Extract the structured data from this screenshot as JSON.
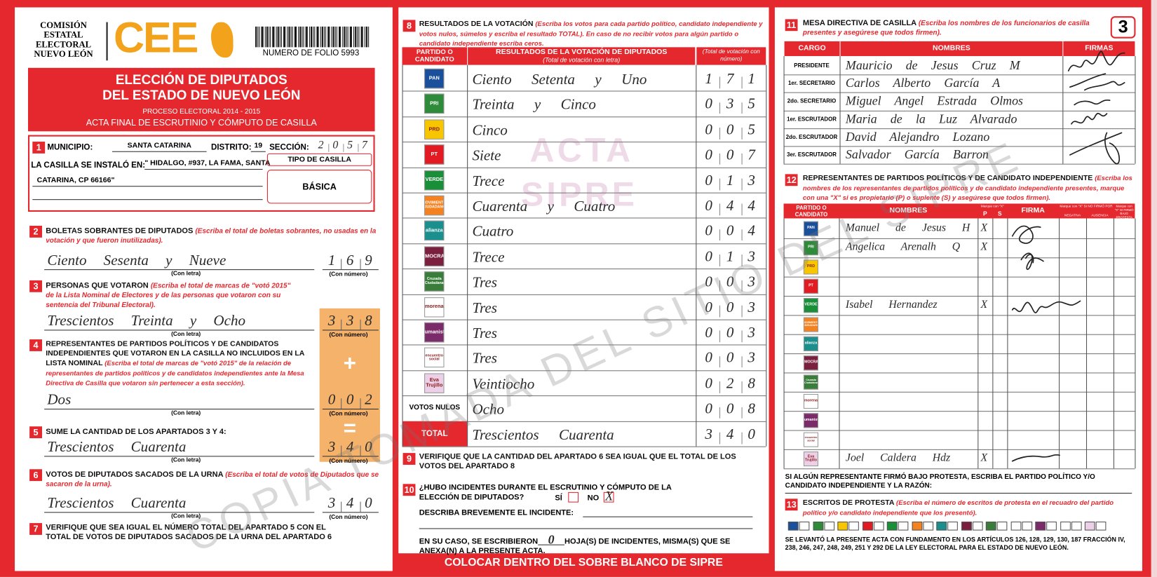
{
  "header": {
    "commission": [
      "COMISIÓN",
      "ESTATAL",
      "ELECTORAL",
      "NUEVO LEÓN"
    ],
    "logo": "CEE",
    "folio": "NUMERO DE FOLIO 5993",
    "title": [
      "ELECCIÓN DE DIPUTADOS",
      "DEL ESTADO DE NUEVO LEÓN"
    ],
    "process": "PROCESO ELECTORAL 2014 - 2015",
    "subtitle": "ACTA FINAL DE ESCRUTINIO Y CÓMPUTO DE CASILLA",
    "sheet": "3"
  },
  "location": {
    "number": "1",
    "municipio_label": "MUNICIPIO:",
    "municipio": "SANTA CATARINA",
    "distrito_label": "DISTRITO:",
    "distrito": "19",
    "seccion_label": "SECCIÓN:",
    "seccion": "2057",
    "installed_label": "LA CASILLA SE INSTALÓ EN:",
    "address": [
      "\" HIDALGO, #937, LA FAMA, SANTA",
      "CATARINA, CP 66166\""
    ],
    "type_label": "TIPO DE CASILLA",
    "type": "BÁSICA"
  },
  "captions": {
    "letter": "(Con letra)",
    "number": "(Con número)"
  },
  "operators": [
    "+",
    "="
  ],
  "tally": [
    {
      "number": "2",
      "title": "BOLETAS SOBRANTES DE DIPUTADOS",
      "instruction": "(Escriba el total de boletas sobrantes, no usadas en la votación y que fueron inutilizadas).",
      "words": "Ciento Sesenta y Nueve",
      "digits": "169"
    },
    {
      "number": "3",
      "title": "PERSONAS QUE VOTARON",
      "instruction": "(Escriba el total de marcas de \"votó 2015\" de la Lista Nominal de Electores y de las personas que votaron con su sentencia del Tribunal Electoral).",
      "words": "Trescientos Treinta y Ocho",
      "digits": "338"
    },
    {
      "number": "4",
      "title": "REPRESENTANTES DE PARTIDOS POLÍTICOS Y DE CANDIDATOS INDEPENDIENTES QUE VOTARON EN LA CASILLA NO INCLUIDOS EN LA LISTA NOMINAL",
      "instruction": "(Escriba el total de marcas de \"votó 2015\" de la relación de representantes de partidos políticos y de candidatos independientes ante la Mesa Directiva de Casilla que votaron sin pertenecer a esta sección).",
      "words": "Dos",
      "digits": "002"
    },
    {
      "number": "5",
      "title": "SUME LA CANTIDAD DE LOS APARTADOS 3 Y 4:",
      "words": "Trescientos Cuarenta",
      "digits": "340"
    },
    {
      "number": "6",
      "title": "VOTOS DE DIPUTADOS SACADOS DE LA URNA",
      "instruction": "(Escriba el total de votos de Diputados que se sacaron de la urna).",
      "words": "Trescientos Cuarenta",
      "digits": "340"
    }
  ],
  "check7": {
    "number": "7",
    "title": "VERIFIQUE QUE SEA IGUAL EL NÚMERO TOTAL DEL APARTADO 5 CON EL TOTAL DE VOTOS DE DIPUTADOS SACADOS DE LA URNA DEL APARTADO 6"
  },
  "results": {
    "number": "8",
    "title": "RESULTADOS DE LA VOTACIÓN",
    "instruction": "(Escriba los votos para cada partido político, candidato independiente y votos nulos, súmelos y escriba el resultado TOTAL). En caso de no recibir votos para algún partido o candidato independiente escriba ceros.",
    "headers": {
      "party": "PARTIDO O CANDIDATO",
      "words": "RESULTADOS DE LA VOTACIÓN DE DIPUTADOS",
      "words_note": "(Total de votación con letra)",
      "digits": "(Total de votación con número)"
    },
    "rows": [
      {
        "party": "PAN",
        "color": "#1a4f9c",
        "words": "Ciento Setenta y Uno",
        "digits": "171"
      },
      {
        "party": "PRI",
        "color": "#2e8b3a",
        "words": "Treinta y Cinco",
        "digits": "035"
      },
      {
        "party": "PRD",
        "color": "#f7c600",
        "words": "Cinco",
        "digits": "005"
      },
      {
        "party": "PT",
        "color": "#e21b22",
        "words": "Siete",
        "digits": "007"
      },
      {
        "party": "VERDE",
        "color": "#1a8f3a",
        "words": "Trece",
        "digits": "013"
      },
      {
        "party": "MOVIMIENTO CIUDADANO",
        "color": "#f58220",
        "words": "Cuarenta y Cuatro",
        "digits": "044"
      },
      {
        "party": "alianza",
        "color": "#1b8e8e",
        "words": "Cuatro",
        "digits": "004"
      },
      {
        "party": "DEMOCRATA",
        "color": "#7a1f3d",
        "words": "Trece",
        "digits": "013"
      },
      {
        "party": "Cruzada Ciudadana",
        "color": "#3a7d3a",
        "words": "Tres",
        "digits": "003"
      },
      {
        "party": "morena",
        "color": "#ffffff",
        "words": "Tres",
        "digits": "003"
      },
      {
        "party": "Humanista",
        "color": "#7b2a6a",
        "words": "Tres",
        "digits": "003"
      },
      {
        "party": "encuentro social",
        "color": "#ffffff",
        "words": "Tres",
        "digits": "003"
      },
      {
        "party": "Eva Trujillo",
        "color": "#ecd0e8",
        "words": "Veintiocho",
        "digits": "028"
      }
    ],
    "null_votes": {
      "label": "VOTOS NULOS",
      "words": "Ocho",
      "digits": "008"
    },
    "total": {
      "label": "TOTAL",
      "words": "Trescientos Cuarenta",
      "digits": "340"
    }
  },
  "watermarks": [
    "ACTA",
    "SIPRE",
    "COPIA TOMADA DEL SITIO DEL SIPRE"
  ],
  "check9": {
    "number": "9",
    "title": "VERIFIQUE QUE LA CANTIDAD DEL APARTADO 6 SEA IGUAL QUE EL TOTAL DE LOS VOTOS DEL APARTADO 8"
  },
  "incidents": {
    "number": "10",
    "question": "¿HUBO INCIDENTES DURANTE EL ESCRUTINIO Y CÓMPUTO DE LA ELECCIÓN DE DIPUTADOS?",
    "yes": "SÍ",
    "no": "NO",
    "mark": "X",
    "describe": "DESCRIBA BREVEMENTE EL INCIDENTE:",
    "sheets_before": "EN SU CASO, SE ESCRIBIERON",
    "sheets": "0",
    "sheets_after": "HOJA(S) DE INCIDENTES, MISMA(S) QUE SE ANEXA(N) A LA PRESENTE ACTA."
  },
  "footer": "COLOCAR DENTRO DEL SOBRE BLANCO DE SIPRE",
  "officials": {
    "number": "11",
    "title": "MESA DIRECTIVA DE CASILLA",
    "instruction": "(Escriba los nombres de los funcionarios de casilla presentes y asegúrese que todos firmen).",
    "headers": [
      "CARGO",
      "NOMBRES",
      "FIRMAS"
    ],
    "rows": [
      {
        "role": "PRESIDENTE",
        "name": "Mauricio de Jesus Cruz M"
      },
      {
        "role": "1er. SECRETARIO",
        "name": "Carlos Alberto García A"
      },
      {
        "role": "2do. SECRETARIO",
        "name": "Miguel Angel Estrada Olmos"
      },
      {
        "role": "1er. ESCRUTADOR",
        "name": "Maria de la Luz Alvarado"
      },
      {
        "role": "2do. ESCRUTADOR",
        "name": "David Alejandro Lozano"
      },
      {
        "role": "3er. ESCRUTADOR",
        "name": "Salvador García Barron"
      }
    ]
  },
  "representatives": {
    "number": "12",
    "title": "REPRESENTANTES DE PARTIDOS POLÍTICOS Y DE CANDIDATO INDEPENDIENTE",
    "instruction": "(Escriba los nombres de los representantes de partidos políticos y de candidato independiente presentes, marque con una \"X\" si es propietario (P) o suplente (S) y asegúrese que todos firmen).",
    "headers": {
      "party": "PARTIDO O CANDIDATO",
      "names": "NOMBRES",
      "mark": "Marque con \"X\"",
      "p": "P",
      "s": "S",
      "signature": "FIRMA",
      "refused": "Marque con \"X\" SI NO FIRMÓ POR",
      "negative": "NEGATIVA",
      "absence": "AUSENCIA",
      "protest": "Marque con \"X\" SI FIRMÓ BAJO PROTESTA"
    },
    "rows": [
      {
        "name": "Manuel de Jesus H",
        "p": "X"
      },
      {
        "name": "Angelica Arenalh Q",
        "p": "X"
      },
      {},
      {},
      {
        "name": "Isabel Hernandez",
        "p": "X"
      },
      {},
      {},
      {},
      {},
      {},
      {},
      {},
      {
        "name": "Joel Caldera Hdz",
        "p": "X"
      }
    ]
  },
  "protest_note": "SI ALGÚN REPRESENTANTE FIRMÓ BAJO PROTESTA, ESCRIBA EL PARTIDO POLÍTICO Y/O CANDIDATO INDEPENDIENTE Y LA RAZÓN:",
  "protests": {
    "number": "13",
    "title": "ESCRITOS DE PROTESTA",
    "instruction": "(Escriba el número de escritos de protesta en el recuadro del partido político y/o candidato independiente que los presentó)."
  },
  "legal": "SE LEVANTÓ LA PRESENTE ACTA CON FUNDAMENTO EN LOS ARTÍCULOS 126, 128, 129, 130, 187 FRACCIÓN IV, 238, 246, 247, 248, 249, 251 Y 292 DE LA LEY ELECTORAL PARA EL ESTADO DE NUEVO LEÓN."
}
